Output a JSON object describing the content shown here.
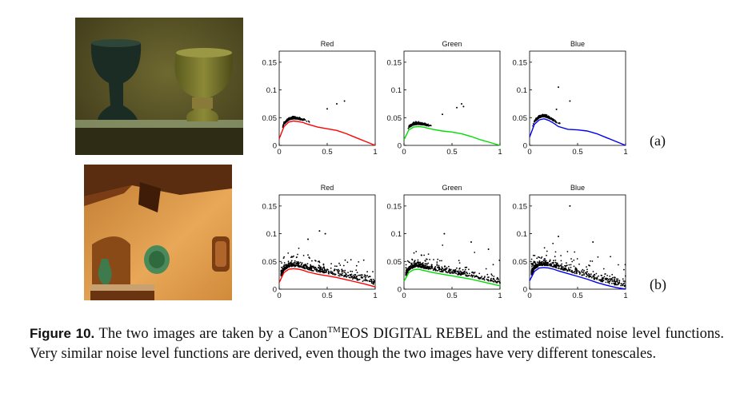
{
  "figure": {
    "row_labels": [
      "(a)",
      "(b)"
    ],
    "caption": {
      "label": "Figure 10.",
      "text_before_tm": " The two images are taken by a Canon",
      "superscript": "TM",
      "text_after_tm": "EOS DIGITAL REBEL and the estimated noise level functions. Very similar noise level functions are derived, even though the two images have very different tonescales."
    }
  },
  "photos": [
    {
      "id": "a",
      "colors": {
        "background": "#5a5428",
        "glass_dark": "#1c2e26",
        "glass_olive": "#7e7a2e",
        "shelf": "#9aa27c"
      }
    },
    {
      "id": "b",
      "colors": {
        "wall": "#d98d3a",
        "beam": "#5a2c10",
        "niche": "#7a4416",
        "vase": "#3f7a4c",
        "plate": "#4a8a5a"
      }
    }
  ],
  "chart_data": [
    {
      "type": "scatter",
      "title": "Red",
      "row": "a",
      "xlim": [
        0,
        1
      ],
      "ylim": [
        0,
        0.17
      ],
      "xticks": [
        "0",
        "0.5",
        "1"
      ],
      "yticks": [
        "0",
        "0.05",
        "0.1",
        "0.15"
      ],
      "curve_color": "#ff0000",
      "curve": {
        "x": [
          0,
          0.05,
          0.1,
          0.15,
          0.2,
          0.25,
          0.3,
          0.4,
          0.5,
          0.6,
          0.7,
          0.8,
          0.9,
          1.0
        ],
        "y": [
          0.012,
          0.034,
          0.042,
          0.044,
          0.043,
          0.041,
          0.038,
          0.033,
          0.03,
          0.027,
          0.021,
          0.014,
          0.007,
          0.0
        ]
      },
      "outliers": [
        {
          "x": 0.6,
          "y": 0.075
        },
        {
          "x": 0.68,
          "y": 0.08
        },
        {
          "x": 0.5,
          "y": 0.066
        }
      ]
    },
    {
      "type": "scatter",
      "title": "Green",
      "row": "a",
      "xlim": [
        0,
        1
      ],
      "ylim": [
        0,
        0.17
      ],
      "xticks": [
        "0",
        "0.5",
        "1"
      ],
      "yticks": [
        "0",
        "0.05",
        "0.1",
        "0.15"
      ],
      "curve_color": "#00dd00",
      "curve": {
        "x": [
          0,
          0.05,
          0.1,
          0.15,
          0.2,
          0.25,
          0.3,
          0.4,
          0.5,
          0.6,
          0.7,
          0.8,
          0.9,
          1.0
        ],
        "y": [
          0.01,
          0.028,
          0.033,
          0.034,
          0.033,
          0.031,
          0.029,
          0.026,
          0.024,
          0.021,
          0.016,
          0.01,
          0.005,
          0.0
        ]
      },
      "outliers": [
        {
          "x": 0.62,
          "y": 0.07
        },
        {
          "x": 0.6,
          "y": 0.075
        },
        {
          "x": 0.55,
          "y": 0.068
        },
        {
          "x": 0.4,
          "y": 0.056
        }
      ]
    },
    {
      "type": "scatter",
      "title": "Blue",
      "row": "a",
      "xlim": [
        0,
        1
      ],
      "ylim": [
        0,
        0.17
      ],
      "xticks": [
        "0",
        "0.5",
        "1"
      ],
      "yticks": [
        "0",
        "0.05",
        "0.1",
        "0.15"
      ],
      "curve_color": "#0000ee",
      "curve": {
        "x": [
          0,
          0.05,
          0.1,
          0.15,
          0.2,
          0.25,
          0.3,
          0.4,
          0.5,
          0.6,
          0.7,
          0.8,
          0.9,
          1.0
        ],
        "y": [
          0.015,
          0.038,
          0.046,
          0.048,
          0.045,
          0.04,
          0.034,
          0.029,
          0.028,
          0.026,
          0.021,
          0.014,
          0.007,
          0.0
        ]
      },
      "outliers": [
        {
          "x": 0.3,
          "y": 0.105
        },
        {
          "x": 0.42,
          "y": 0.08
        },
        {
          "x": 0.28,
          "y": 0.065
        }
      ]
    },
    {
      "type": "scatter",
      "title": "Red",
      "row": "b",
      "xlim": [
        0,
        1
      ],
      "ylim": [
        0,
        0.17
      ],
      "xticks": [
        "0",
        "0.5",
        "1"
      ],
      "yticks": [
        "0",
        "0.05",
        "0.1",
        "0.15"
      ],
      "curve_color": "#ff0000",
      "curve": {
        "x": [
          0,
          0.05,
          0.1,
          0.15,
          0.2,
          0.25,
          0.3,
          0.4,
          0.5,
          0.6,
          0.7,
          0.8,
          0.9,
          1.0
        ],
        "y": [
          0.012,
          0.03,
          0.036,
          0.037,
          0.036,
          0.034,
          0.031,
          0.027,
          0.024,
          0.021,
          0.017,
          0.013,
          0.009,
          0.004
        ]
      },
      "outliers": [
        {
          "x": 0.42,
          "y": 0.105
        },
        {
          "x": 0.48,
          "y": 0.1
        },
        {
          "x": 0.3,
          "y": 0.09
        }
      ]
    },
    {
      "type": "scatter",
      "title": "Green",
      "row": "b",
      "xlim": [
        0,
        1
      ],
      "ylim": [
        0,
        0.17
      ],
      "xticks": [
        "0",
        "0.5",
        "1"
      ],
      "yticks": [
        "0",
        "0.05",
        "0.1",
        "0.15"
      ],
      "curve_color": "#00dd00",
      "curve": {
        "x": [
          0,
          0.05,
          0.1,
          0.15,
          0.2,
          0.25,
          0.3,
          0.4,
          0.5,
          0.6,
          0.7,
          0.8,
          0.9,
          1.0
        ],
        "y": [
          0.014,
          0.03,
          0.035,
          0.036,
          0.034,
          0.032,
          0.03,
          0.027,
          0.024,
          0.021,
          0.018,
          0.014,
          0.01,
          0.006
        ]
      },
      "outliers": [
        {
          "x": 0.42,
          "y": 0.1
        },
        {
          "x": 0.7,
          "y": 0.085
        },
        {
          "x": 0.88,
          "y": 0.072
        }
      ]
    },
    {
      "type": "scatter",
      "title": "Blue",
      "row": "b",
      "xlim": [
        0,
        1
      ],
      "ylim": [
        0,
        0.17
      ],
      "xticks": [
        "0",
        "0.5",
        "1"
      ],
      "yticks": [
        "0",
        "0.05",
        "0.1",
        "0.15"
      ],
      "curve_color": "#0000ee",
      "curve": {
        "x": [
          0,
          0.05,
          0.1,
          0.15,
          0.2,
          0.25,
          0.3,
          0.4,
          0.5,
          0.6,
          0.7,
          0.8,
          0.9,
          1.0
        ],
        "y": [
          0.015,
          0.032,
          0.038,
          0.039,
          0.038,
          0.036,
          0.033,
          0.028,
          0.023,
          0.018,
          0.012,
          0.007,
          0.003,
          0.0
        ]
      },
      "outliers": [
        {
          "x": 0.42,
          "y": 0.15
        },
        {
          "x": 0.3,
          "y": 0.095
        },
        {
          "x": 0.66,
          "y": 0.085
        }
      ]
    }
  ]
}
